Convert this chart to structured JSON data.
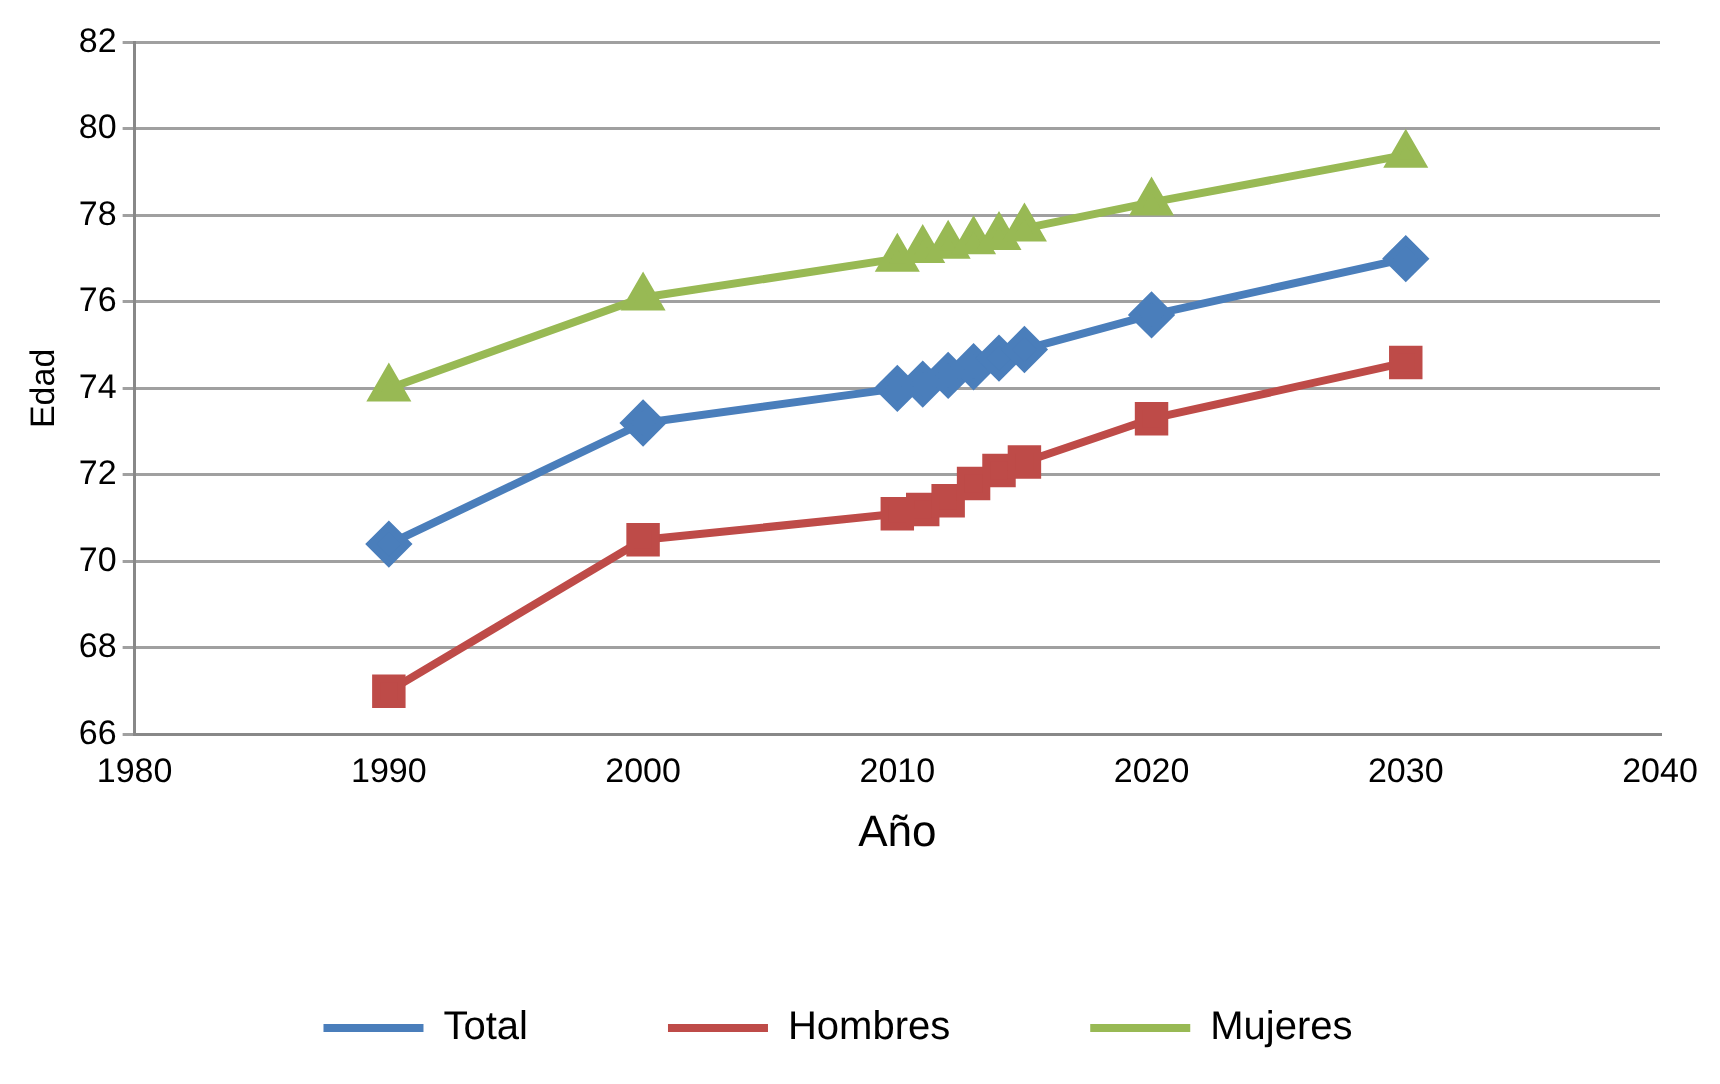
{
  "chart_data": {
    "type": "line",
    "xlabel": "Año",
    "ylabel": "Edad",
    "x": [
      1990,
      2000,
      2010,
      2011,
      2012,
      2013,
      2014,
      2015,
      2020,
      2030
    ],
    "series": [
      {
        "name": "Total",
        "color": "#4a7ebb",
        "marker": "diamond",
        "values": [
          70.4,
          73.2,
          74.0,
          74.1,
          74.3,
          74.5,
          74.7,
          74.9,
          75.7,
          77.0
        ]
      },
      {
        "name": "Hombres",
        "color": "#be4b48",
        "marker": "square",
        "values": [
          67.0,
          70.5,
          71.1,
          71.2,
          71.4,
          71.8,
          72.1,
          72.3,
          73.3,
          74.6
        ]
      },
      {
        "name": "Mujeres",
        "color": "#98b954",
        "marker": "triangle",
        "values": [
          74.0,
          76.1,
          77.0,
          77.2,
          77.3,
          77.4,
          77.5,
          77.7,
          78.3,
          79.4
        ]
      }
    ],
    "xlim": [
      1980,
      2040
    ],
    "xticks": [
      1980,
      1990,
      2000,
      2010,
      2020,
      2030,
      2040
    ],
    "ylim": [
      66,
      82
    ],
    "yticks": [
      66,
      68,
      70,
      72,
      74,
      76,
      78,
      80,
      82
    ],
    "grid": "y",
    "legend": "bottom",
    "line_style": "solid"
  }
}
